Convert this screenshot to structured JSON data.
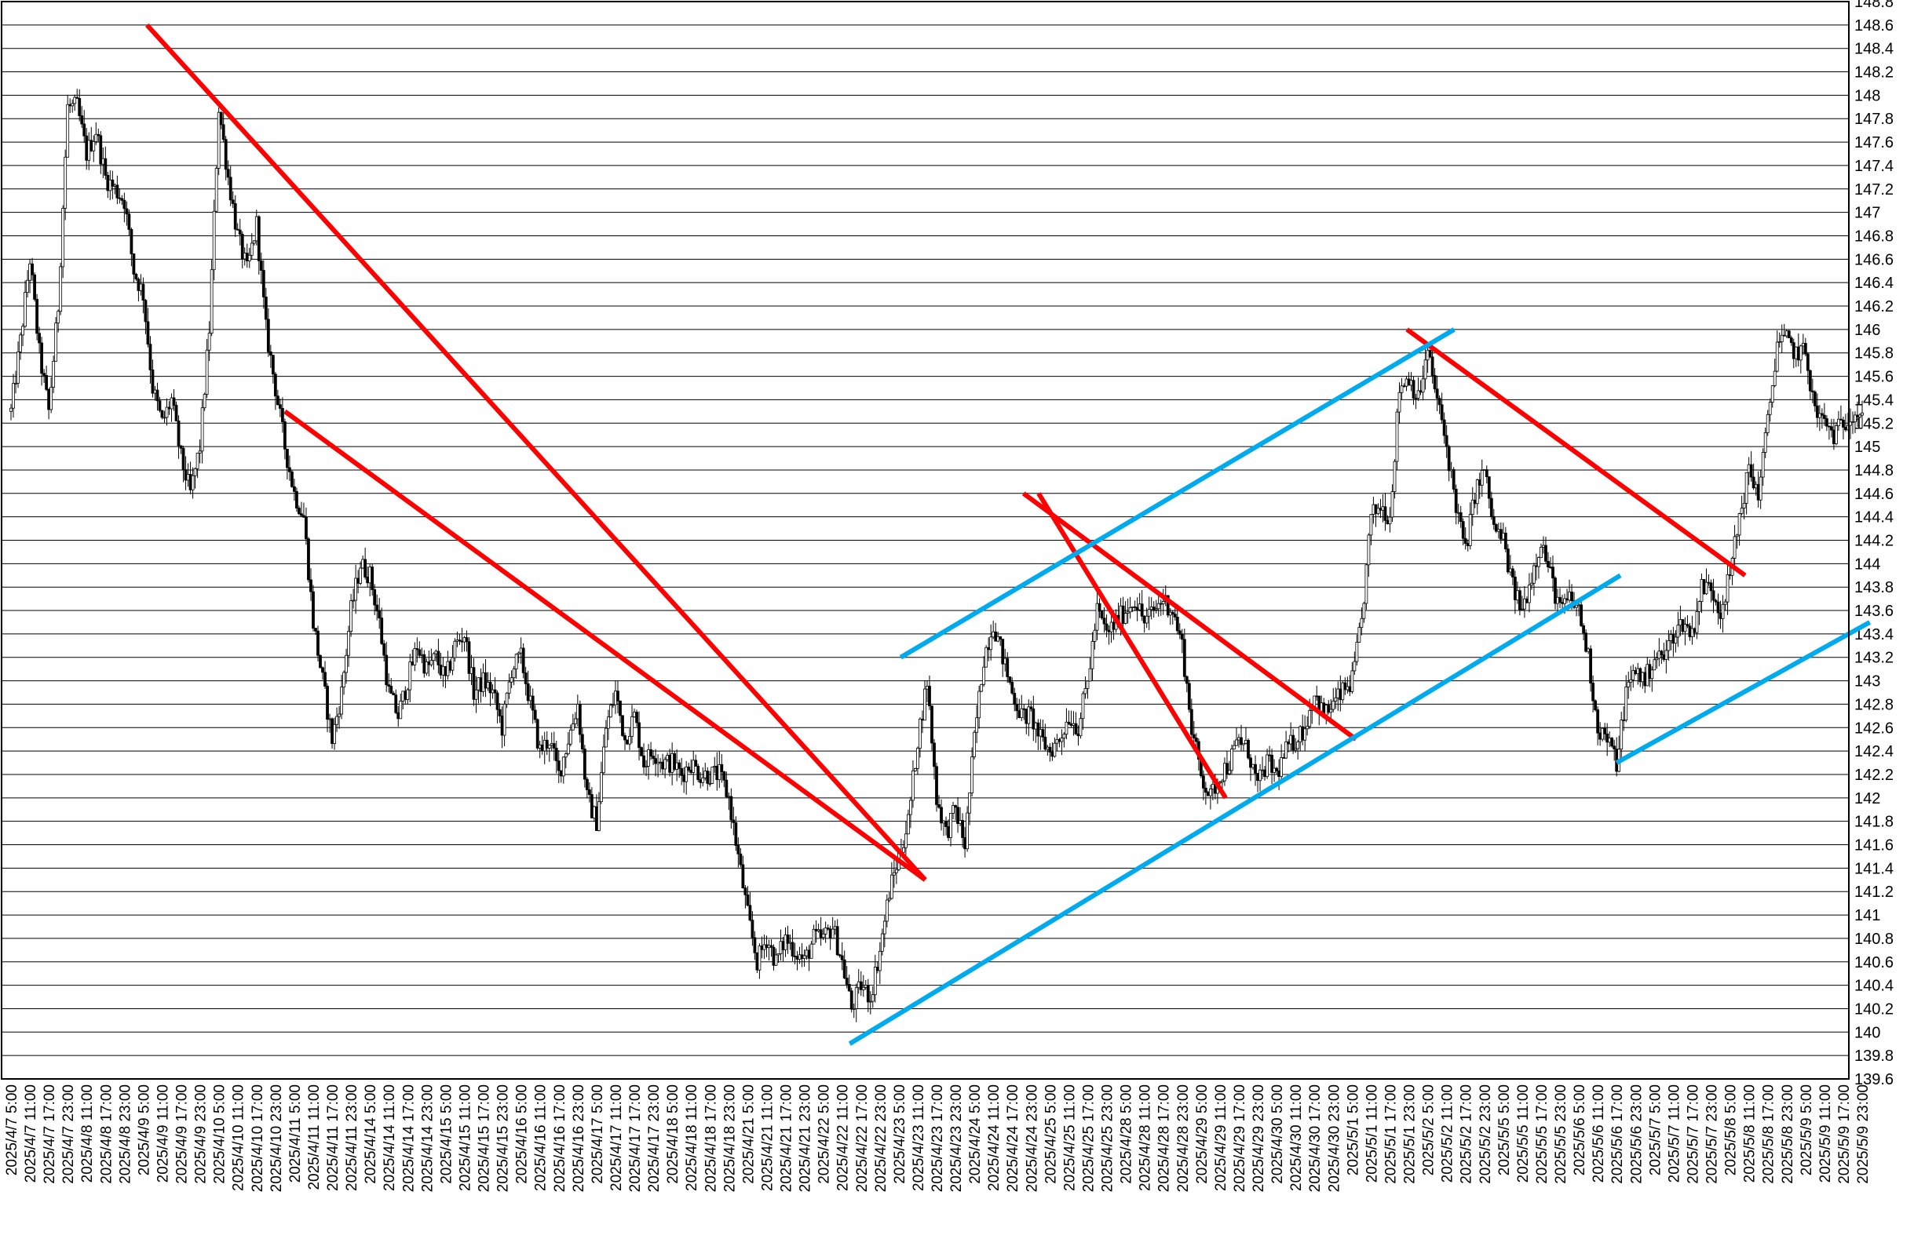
{
  "chart_data": {
    "type": "candlestick",
    "title": "",
    "xlabel": "",
    "ylabel": "",
    "ylim": [
      139.6,
      148.8
    ],
    "y_tick_step": 0.2,
    "y_ticks": [
      "139.6",
      "139.8",
      "140",
      "140.2",
      "140.4",
      "140.6",
      "140.8",
      "141",
      "141.2",
      "141.4",
      "141.6",
      "141.8",
      "142",
      "142.2",
      "142.4",
      "142.6",
      "142.8",
      "143",
      "143.2",
      "143.4",
      "143.6",
      "143.8",
      "144",
      "144.2",
      "144.4",
      "144.6",
      "144.8",
      "145",
      "145.2",
      "145.4",
      "145.6",
      "145.8",
      "146",
      "146.2",
      "146.4",
      "146.6",
      "146.8",
      "147",
      "147.2",
      "147.4",
      "147.6",
      "147.8",
      "148",
      "148.2",
      "148.4",
      "148.6",
      "148.8"
    ],
    "grid": true,
    "y_axis_position": "right",
    "x_tick_labels": [
      "2025/4/7 5:00",
      "2025/4/7 11:00",
      "2025/4/7 17:00",
      "2025/4/7 23:00",
      "2025/4/8 11:00",
      "2025/4/8 17:00",
      "2025/4/8 23:00",
      "2025/4/9 5:00",
      "2025/4/9 11:00",
      "2025/4/9 17:00",
      "2025/4/9 23:00",
      "2025/4/10 5:00",
      "2025/4/10 11:00",
      "2025/4/10 17:00",
      "2025/4/10 23:00",
      "2025/4/11 5:00",
      "2025/4/11 11:00",
      "2025/4/11 17:00",
      "2025/4/11 23:00",
      "2025/4/14 5:00",
      "2025/4/14 11:00",
      "2025/4/14 17:00",
      "2025/4/14 23:00",
      "2025/4/15 5:00",
      "2025/4/15 11:00",
      "2025/4/15 17:00",
      "2025/4/15 23:00",
      "2025/4/16 5:00",
      "2025/4/16 11:00",
      "2025/4/16 17:00",
      "2025/4/16 23:00",
      "2025/4/17 5:00",
      "2025/4/17 11:00",
      "2025/4/17 17:00",
      "2025/4/17 23:00",
      "2025/4/18 5:00",
      "2025/4/18 11:00",
      "2025/4/18 17:00",
      "2025/4/18 23:00",
      "2025/4/21 5:00",
      "2025/4/21 11:00",
      "2025/4/21 17:00",
      "2025/4/21 23:00",
      "2025/4/22 5:00",
      "2025/4/22 11:00",
      "2025/4/22 17:00",
      "2025/4/22 23:00",
      "2025/4/23 5:00",
      "2025/4/23 11:00",
      "2025/4/23 17:00",
      "2025/4/23 23:00",
      "2025/4/24 5:00",
      "2025/4/24 11:00",
      "2025/4/24 17:00",
      "2025/4/24 23:00",
      "2025/4/25 5:00",
      "2025/4/25 11:00",
      "2025/4/25 17:00",
      "2025/4/25 23:00",
      "2025/4/28 5:00",
      "2025/4/28 11:00",
      "2025/4/28 17:00",
      "2025/4/28 23:00",
      "2025/4/29 5:00",
      "2025/4/29 11:00",
      "2025/4/29 17:00",
      "2025/4/29 23:00",
      "2025/4/30 5:00",
      "2025/4/30 11:00",
      "2025/4/30 17:00",
      "2025/4/30 23:00",
      "2025/5/1 5:00",
      "2025/5/1 11:00",
      "2025/5/1 17:00",
      "2025/5/1 23:00",
      "2025/5/2 5:00",
      "2025/5/2 11:00",
      "2025/5/2 17:00",
      "2025/5/2 23:00",
      "2025/5/5 5:00",
      "2025/5/5 11:00",
      "2025/5/5 17:00",
      "2025/5/5 23:00",
      "2025/5/6 5:00",
      "2025/5/6 11:00",
      "2025/5/6 17:00",
      "2025/5/6 23:00",
      "2025/5/7 5:00",
      "2025/5/7 11:00",
      "2025/5/7 17:00",
      "2025/5/7 23:00",
      "2025/5/8 5:00",
      "2025/5/8 11:00",
      "2025/5/8 17:00",
      "2025/5/8 23:00",
      "2025/5/9 5:00",
      "2025/5/9 11:00",
      "2025/5/9 17:00",
      "2025/5/9 23:00"
    ],
    "x_index_max": 98,
    "series": [
      {
        "values": [
          [
            0,
            145.3
          ],
          [
            0.5,
            145.9
          ],
          [
            1,
            146.6
          ],
          [
            1.5,
            145.8
          ],
          [
            2,
            145.3
          ],
          [
            2.5,
            146.2
          ],
          [
            3,
            147.9
          ],
          [
            3.5,
            147.9
          ],
          [
            4,
            147.5
          ],
          [
            4.5,
            147.7
          ],
          [
            5,
            147.3
          ],
          [
            6,
            147.1
          ],
          [
            6.5,
            146.5
          ],
          [
            7,
            146.3
          ],
          [
            7.5,
            145.5
          ],
          [
            8,
            145.2
          ],
          [
            8.5,
            145.4
          ],
          [
            9,
            144.9
          ],
          [
            9.5,
            144.6
          ],
          [
            10,
            145.0
          ],
          [
            10.5,
            146.0
          ],
          [
            11,
            147.9
          ],
          [
            11.5,
            147.3
          ],
          [
            12,
            146.8
          ],
          [
            12.5,
            146.5
          ],
          [
            13,
            146.9
          ],
          [
            13.5,
            146.0
          ],
          [
            14,
            145.5
          ],
          [
            14.5,
            145.0
          ],
          [
            15,
            144.6
          ],
          [
            15.5,
            144.4
          ],
          [
            16,
            143.5
          ],
          [
            16.5,
            143.0
          ],
          [
            17,
            142.5
          ],
          [
            17.5,
            142.9
          ],
          [
            18,
            143.6
          ],
          [
            18.5,
            144.0
          ],
          [
            19,
            143.9
          ],
          [
            19.5,
            143.5
          ],
          [
            20,
            142.9
          ],
          [
            20.5,
            142.7
          ],
          [
            21,
            143.0
          ],
          [
            21.5,
            143.3
          ],
          [
            22,
            143.1
          ],
          [
            22.5,
            143.2
          ],
          [
            23,
            143.0
          ],
          [
            23.5,
            143.3
          ],
          [
            24,
            143.4
          ],
          [
            24.5,
            142.9
          ],
          [
            25,
            143.0
          ],
          [
            25.5,
            142.9
          ],
          [
            26,
            142.6
          ],
          [
            26.5,
            143.1
          ],
          [
            27,
            143.2
          ],
          [
            27.5,
            142.8
          ],
          [
            28,
            142.4
          ],
          [
            28.5,
            142.5
          ],
          [
            29,
            142.2
          ],
          [
            29.5,
            142.5
          ],
          [
            30,
            142.8
          ],
          [
            30.5,
            142.0
          ],
          [
            31,
            141.8
          ],
          [
            31.5,
            142.6
          ],
          [
            32,
            142.9
          ],
          [
            32.5,
            142.5
          ],
          [
            33,
            142.7
          ],
          [
            33.5,
            142.3
          ],
          [
            34,
            142.4
          ],
          [
            34.5,
            142.3
          ],
          [
            35,
            142.3
          ],
          [
            35.5,
            142.2
          ],
          [
            36,
            142.3
          ],
          [
            36.5,
            142.2
          ],
          [
            37,
            142.2
          ],
          [
            37.5,
            142.2
          ],
          [
            38,
            142.0
          ],
          [
            38.5,
            141.5
          ],
          [
            39,
            141.0
          ],
          [
            39.5,
            140.6
          ],
          [
            40,
            140.8
          ],
          [
            40.5,
            140.6
          ],
          [
            41,
            140.8
          ],
          [
            41.5,
            140.7
          ],
          [
            42,
            140.6
          ],
          [
            42.5,
            140.8
          ],
          [
            43,
            140.8
          ],
          [
            43.5,
            140.9
          ],
          [
            44,
            140.6
          ],
          [
            44.5,
            140.2
          ],
          [
            45,
            140.4
          ],
          [
            45.5,
            140.3
          ],
          [
            46,
            140.7
          ],
          [
            46.5,
            141.2
          ],
          [
            47,
            141.5
          ],
          [
            47.5,
            141.8
          ],
          [
            48,
            142.5
          ],
          [
            48.5,
            143.0
          ],
          [
            49,
            142.0
          ],
          [
            49.5,
            141.7
          ],
          [
            50,
            141.9
          ],
          [
            50.5,
            141.6
          ],
          [
            51,
            142.5
          ],
          [
            51.5,
            143.2
          ],
          [
            52,
            143.5
          ],
          [
            52.5,
            143.2
          ],
          [
            53,
            142.9
          ],
          [
            53.5,
            142.7
          ],
          [
            54,
            142.7
          ],
          [
            54.5,
            142.5
          ],
          [
            55,
            142.4
          ],
          [
            55.5,
            142.5
          ],
          [
            56,
            142.7
          ],
          [
            56.5,
            142.6
          ],
          [
            57,
            143.0
          ],
          [
            57.5,
            143.6
          ],
          [
            58,
            143.4
          ],
          [
            58.5,
            143.5
          ],
          [
            59,
            143.6
          ],
          [
            59.5,
            143.7
          ],
          [
            60,
            143.5
          ],
          [
            60.5,
            143.6
          ],
          [
            61,
            143.7
          ],
          [
            61.5,
            143.6
          ],
          [
            62,
            143.3
          ],
          [
            62.5,
            142.6
          ],
          [
            63,
            142.2
          ],
          [
            63.5,
            142.0
          ],
          [
            64,
            142.2
          ],
          [
            64.5,
            142.3
          ],
          [
            65,
            142.5
          ],
          [
            65.5,
            142.4
          ],
          [
            66,
            142.1
          ],
          [
            66.5,
            142.3
          ],
          [
            67,
            142.2
          ],
          [
            67.5,
            142.4
          ],
          [
            68,
            142.5
          ],
          [
            68.5,
            142.6
          ],
          [
            69,
            142.9
          ],
          [
            69.5,
            142.7
          ],
          [
            70,
            142.8
          ],
          [
            70.5,
            142.9
          ],
          [
            71,
            143.0
          ],
          [
            71.5,
            143.5
          ],
          [
            72,
            144.4
          ],
          [
            72.5,
            144.5
          ],
          [
            73,
            144.4
          ],
          [
            73.5,
            145.5
          ],
          [
            74,
            145.6
          ],
          [
            74.5,
            145.4
          ],
          [
            75,
            145.8
          ],
          [
            75.5,
            145.4
          ],
          [
            76,
            145.0
          ],
          [
            76.5,
            144.5
          ],
          [
            77,
            144.1
          ],
          [
            77.5,
            144.6
          ],
          [
            78,
            144.8
          ],
          [
            78.5,
            144.3
          ],
          [
            79,
            144.2
          ],
          [
            79.5,
            143.8
          ],
          [
            80,
            143.6
          ],
          [
            80.5,
            143.9
          ],
          [
            81,
            144.2
          ],
          [
            81.5,
            143.9
          ],
          [
            82,
            143.6
          ],
          [
            82.5,
            143.7
          ],
          [
            83,
            143.6
          ],
          [
            83.5,
            143.2
          ],
          [
            84,
            142.6
          ],
          [
            84.5,
            142.5
          ],
          [
            85,
            142.3
          ],
          [
            85.5,
            142.9
          ],
          [
            86,
            143.1
          ],
          [
            86.5,
            143.0
          ],
          [
            87,
            143.2
          ],
          [
            87.5,
            143.2
          ],
          [
            88,
            143.4
          ],
          [
            88.5,
            143.5
          ],
          [
            89,
            143.4
          ],
          [
            89.5,
            143.8
          ],
          [
            90,
            143.8
          ],
          [
            90.5,
            143.6
          ],
          [
            91,
            143.9
          ],
          [
            91.5,
            144.4
          ],
          [
            92,
            144.8
          ],
          [
            92.5,
            144.6
          ],
          [
            93,
            145.2
          ],
          [
            93.5,
            145.9
          ],
          [
            94,
            145.9
          ],
          [
            94.5,
            145.8
          ],
          [
            95,
            145.8
          ],
          [
            95.5,
            145.3
          ],
          [
            96,
            145.2
          ],
          [
            96.5,
            145.1
          ],
          [
            97,
            145.2
          ],
          [
            97.5,
            145.3
          ],
          [
            98,
            145.3
          ]
        ]
      }
    ],
    "trendlines": [
      {
        "color": "#ff0000",
        "from": [
          7.2,
          148.6
        ],
        "to": [
          48.4,
          141.3
        ]
      },
      {
        "color": "#ff0000",
        "from": [
          14.5,
          145.3
        ],
        "to": [
          48.4,
          141.3
        ]
      },
      {
        "color": "#ff0000",
        "from": [
          54.4,
          144.6
        ],
        "to": [
          64.3,
          142.0
        ]
      },
      {
        "color": "#ff0000",
        "from": [
          53.6,
          144.6
        ],
        "to": [
          71.2,
          142.5
        ]
      },
      {
        "color": "#ff0000",
        "from": [
          73.9,
          146.0
        ],
        "to": [
          91.8,
          143.9
        ]
      },
      {
        "color": "#00aaee",
        "from": [
          44.4,
          139.9
        ],
        "to": [
          85.2,
          143.9
        ]
      },
      {
        "color": "#00aaee",
        "from": [
          47.1,
          143.2
        ],
        "to": [
          76.4,
          146.0
        ]
      },
      {
        "color": "#00aaee",
        "from": [
          85.0,
          142.3
        ],
        "to": [
          98.4,
          143.5
        ]
      }
    ]
  }
}
